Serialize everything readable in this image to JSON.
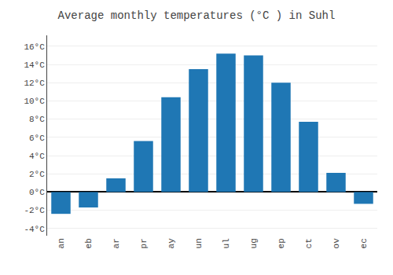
{
  "chart_data": {
    "type": "bar",
    "title": "Average monthly temperatures (°C ) in Suhl",
    "categories": [
      "an",
      "eb",
      "ar",
      "pr",
      "ay",
      "un",
      "ul",
      "ug",
      "ep",
      "ct",
      "ov",
      "ec"
    ],
    "values": [
      -2.4,
      -1.7,
      1.5,
      5.6,
      10.4,
      13.5,
      15.2,
      15.0,
      12.0,
      7.7,
      2.1,
      -1.3
    ],
    "ylim": [
      -4.8,
      17.2
    ],
    "yticks": [
      {
        "value": -4,
        "label": "-4°C"
      },
      {
        "value": -2,
        "label": "-2°C"
      },
      {
        "value": 0,
        "label": "0°C"
      },
      {
        "value": 2,
        "label": "2°C"
      },
      {
        "value": 4,
        "label": "4°C"
      },
      {
        "value": 6,
        "label": "6°C"
      },
      {
        "value": 8,
        "label": "8°C"
      },
      {
        "value": 10,
        "label": "10°C"
      },
      {
        "value": 12,
        "label": "12°C"
      },
      {
        "value": 14,
        "label": "14°C"
      },
      {
        "value": 16,
        "label": "16°C"
      }
    ],
    "grid": true
  }
}
